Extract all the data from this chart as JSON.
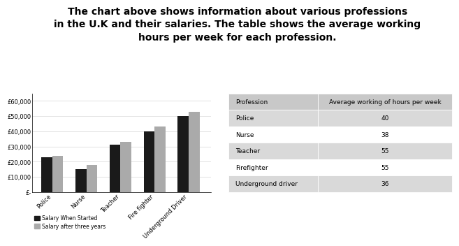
{
  "title": "The chart above shows information about various professions\nin the U.K and their salaries. The table shows the average working\nhours per week for each profession.",
  "professions": [
    "Police",
    "Nurse",
    "Teacher",
    "Fire fighter",
    "Underground Driver"
  ],
  "salary_start": [
    23000,
    15000,
    31000,
    40000,
    50000
  ],
  "salary_three_years": [
    24000,
    18000,
    33000,
    43000,
    53000
  ],
  "bar_color_start": "#1a1a1a",
  "bar_color_three": "#aaaaaa",
  "yticks": [
    0,
    10000,
    20000,
    30000,
    40000,
    50000,
    60000
  ],
  "ytick_labels": [
    "£-",
    "£10,000",
    "£20,000",
    "£30,000",
    "£40,000",
    "£50,000",
    "£60,000"
  ],
  "legend_start": "Salary When Started",
  "legend_three": "Salary after three years",
  "table_header": [
    "Profession",
    "Average working of hours per week"
  ],
  "table_data": [
    [
      "Police",
      "40"
    ],
    [
      "Nurse",
      "38"
    ],
    [
      "Teacher",
      "55"
    ],
    [
      "Firefighter",
      "55"
    ],
    [
      "Underground driver",
      "36"
    ]
  ],
  "table_header_bg": "#c8c8c8",
  "table_row_odd_bg": "#d9d9d9",
  "table_row_even_bg": "#ffffff",
  "background_color": "#ffffff",
  "title_fontsize": 10,
  "axis_fontsize": 6,
  "table_fontsize": 6.5
}
